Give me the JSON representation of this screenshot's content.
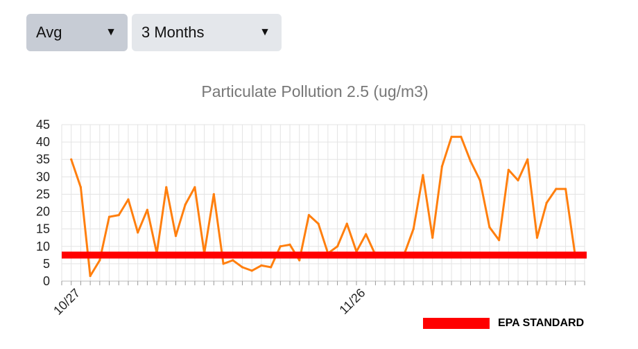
{
  "controls": {
    "aggregation": {
      "selected": "Avg"
    },
    "range": {
      "selected": "3 Months"
    }
  },
  "chart_data": {
    "type": "line",
    "title": "Particulate Pollution 2.5 (ug/m3)",
    "xlabel": "",
    "ylabel": "",
    "ylim": [
      0,
      45
    ],
    "yticks": [
      0,
      5,
      10,
      15,
      20,
      25,
      30,
      35,
      40,
      45
    ],
    "x_tick_labels": [
      {
        "index": 1,
        "label": "10/27"
      },
      {
        "index": 31,
        "label": "11/26"
      }
    ],
    "grid": true,
    "series": [
      {
        "name": "",
        "color": "#ff7f0e",
        "values": [
          35,
          27,
          1.5,
          6,
          18.5,
          19,
          23.5,
          14,
          20.5,
          8,
          27,
          13,
          22,
          27,
          8,
          25,
          5,
          6,
          4,
          3,
          4.5,
          4,
          10,
          10.5,
          6,
          19,
          16.5,
          8,
          10,
          16.5,
          8.5,
          13.5,
          7.5,
          7.5,
          7.5,
          7.5,
          15,
          30.5,
          12.5,
          33,
          41.5,
          41.5,
          34.5,
          29,
          15.5,
          11.8,
          32,
          29,
          35,
          12.5,
          22.5,
          26.5,
          26.5,
          7.5
        ]
      }
    ],
    "reference_line": {
      "name": "EPA STANDARD",
      "value": 7.5,
      "color": "#ff0000"
    },
    "legend": {
      "position": "bottom-right",
      "label": "EPA STANDARD"
    }
  }
}
